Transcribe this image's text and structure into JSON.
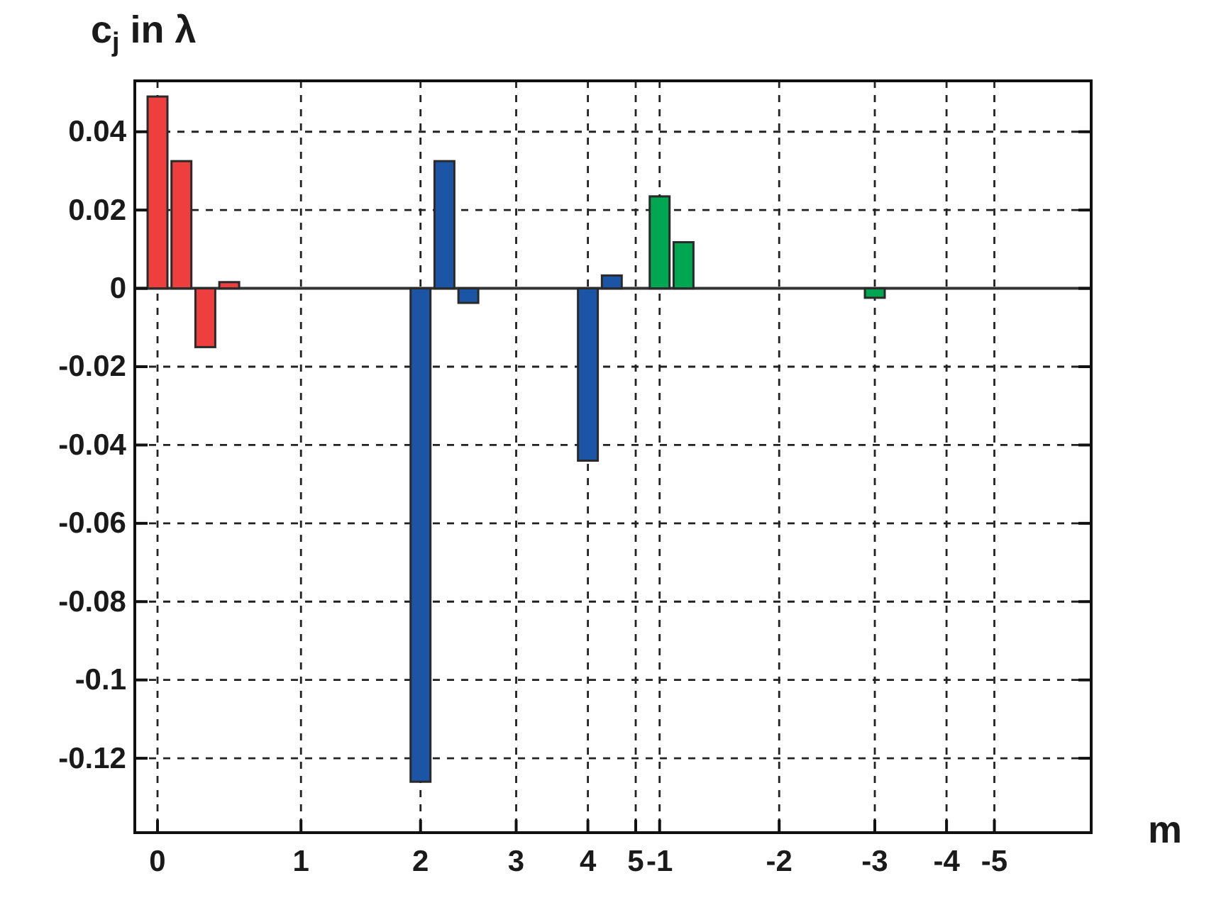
{
  "chart_data": {
    "type": "bar",
    "ylabel": "c$_{j}$ in λ",
    "xlabel": "m",
    "categories": [
      "0",
      null,
      null,
      null,
      null,
      null,
      "1",
      null,
      null,
      null,
      null,
      "2",
      null,
      null,
      null,
      "3",
      null,
      null,
      "4",
      null,
      "5",
      "-1",
      null,
      null,
      null,
      null,
      "-2",
      null,
      null,
      null,
      "-3",
      null,
      null,
      "-4",
      null,
      "-5"
    ],
    "values": [
      0.049,
      0.0325,
      -0.015,
      0.0016,
      0,
      0,
      0,
      0,
      0,
      0,
      0,
      -0.126,
      0.0325,
      -0.0037,
      0,
      0,
      0,
      0,
      -0.044,
      0.0033,
      0,
      0.0235,
      0.0118,
      0,
      0,
      0,
      0,
      0,
      0,
      0,
      -0.0024,
      0,
      0,
      0,
      0,
      0
    ],
    "colors": [
      "#ee3f3f",
      "#ee3f3f",
      "#ee3f3f",
      "#ee3f3f",
      "#ee3f3f",
      "#ee3f3f",
      "#1d55a6",
      "#1d55a6",
      "#1d55a6",
      "#1d55a6",
      "#1d55a6",
      "#1d55a6",
      "#1d55a6",
      "#1d55a6",
      "#1d55a6",
      "#1d55a6",
      "#1d55a6",
      "#1d55a6",
      "#1d55a6",
      "#1d55a6",
      "#1d55a6",
      "#00a651",
      "#00a651",
      "#00a651",
      "#00a651",
      "#00a651",
      "#00a651",
      "#00a651",
      "#00a651",
      "#00a651",
      "#00a651",
      "#00a651",
      "#00a651",
      "#00a651",
      "#00a651",
      "#00a651"
    ],
    "ylim": [
      -0.139,
      0.053
    ],
    "yticks": [
      -0.12,
      -0.1,
      -0.08,
      -0.06,
      -0.04,
      -0.02,
      0,
      0.02,
      0.04
    ],
    "grid": true,
    "ref_lines": [
      {
        "axis": "y",
        "value": 0,
        "color": "#333333"
      }
    ]
  }
}
